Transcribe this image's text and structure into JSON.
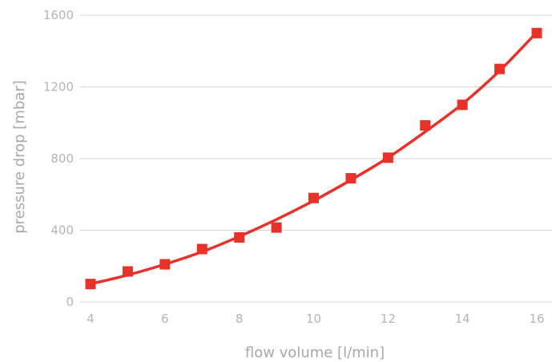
{
  "chart_data": {
    "type": "line",
    "title": "",
    "xlabel": "flow volume [l/min]",
    "ylabel": "pressure drop [mbar]",
    "xlim": [
      4,
      16
    ],
    "ylim": [
      0,
      1600
    ],
    "xticks": [
      4,
      6,
      8,
      10,
      12,
      14,
      16
    ],
    "yticks": [
      0,
      400,
      800,
      1200,
      1600
    ],
    "grid": "horizontal",
    "legend": "none",
    "series": [
      {
        "color": "#e8312a",
        "marker": "square",
        "points": [
          {
            "x": 4,
            "y": 100
          },
          {
            "x": 5,
            "y": 170
          },
          {
            "x": 6,
            "y": 210
          },
          {
            "x": 7,
            "y": 295
          },
          {
            "x": 8,
            "y": 360
          },
          {
            "x": 9,
            "y": 415
          },
          {
            "x": 10,
            "y": 580
          },
          {
            "x": 11,
            "y": 690
          },
          {
            "x": 12,
            "y": 805
          },
          {
            "x": 13,
            "y": 985
          },
          {
            "x": 14,
            "y": 1100
          },
          {
            "x": 15,
            "y": 1300
          },
          {
            "x": 16,
            "y": 1500
          }
        ],
        "fit_curve": [
          {
            "x": 4,
            "y": 100
          },
          {
            "x": 5,
            "y": 150
          },
          {
            "x": 6,
            "y": 210
          },
          {
            "x": 7,
            "y": 280
          },
          {
            "x": 8,
            "y": 365
          },
          {
            "x": 9,
            "y": 460
          },
          {
            "x": 10,
            "y": 565
          },
          {
            "x": 11,
            "y": 680
          },
          {
            "x": 12,
            "y": 805
          },
          {
            "x": 13,
            "y": 950
          },
          {
            "x": 14,
            "y": 1105
          },
          {
            "x": 15,
            "y": 1290
          },
          {
            "x": 16,
            "y": 1505
          }
        ]
      }
    ]
  }
}
